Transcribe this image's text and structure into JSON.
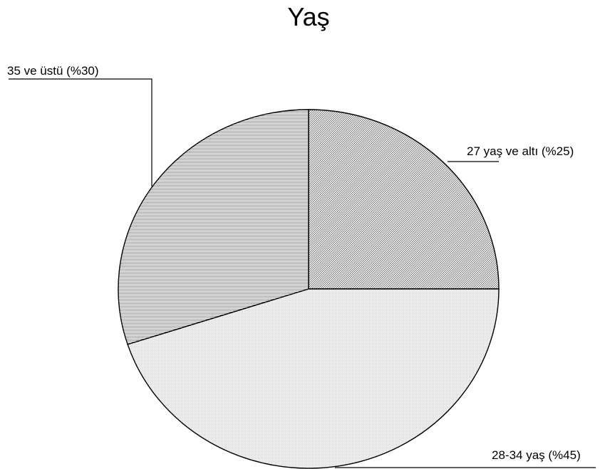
{
  "chart_data": {
    "type": "pie",
    "title": "Yaş",
    "slices": [
      {
        "label": "27 yaş ve altı (%25)",
        "value": 25,
        "pattern": "diagonal"
      },
      {
        "label": "28-34 yaş (%45)",
        "value": 45,
        "pattern": "dots"
      },
      {
        "label": "35 ve üstü  (%30)",
        "value": 30,
        "pattern": "horizontal"
      }
    ],
    "start_angle_deg": 0,
    "direction": "clockwise",
    "legend": "none",
    "colors": {
      "outline": "#000000",
      "background": "#ffffff"
    }
  }
}
